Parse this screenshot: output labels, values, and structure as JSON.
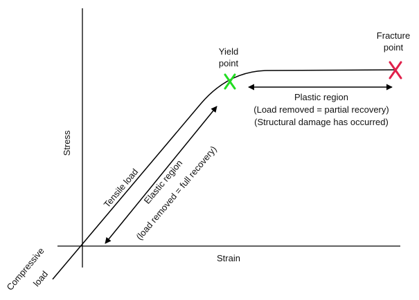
{
  "axes": {
    "y_label": "Stress",
    "x_label": "Strain"
  },
  "labels": {
    "yield_line1": "Yield",
    "yield_line2": "point",
    "fracture_line1": "Fracture",
    "fracture_line2": "point",
    "plastic_line1": "Plastic region",
    "plastic_line2": "(Load removed = partial recovery)",
    "plastic_line3": "(Structural damage has occurred)",
    "elastic_line1": "Elastic region",
    "elastic_line2": "(load removed = full recovery)",
    "tensile": "Tensile load",
    "compressive_line1": "Compressive",
    "compressive_line2": "load"
  },
  "colors": {
    "yield_marker": "#22dd22",
    "fracture_marker": "#e0204a",
    "line": "#000000"
  },
  "markers": {
    "yield_icon": "x-mark-icon",
    "fracture_icon": "x-mark-icon"
  }
}
